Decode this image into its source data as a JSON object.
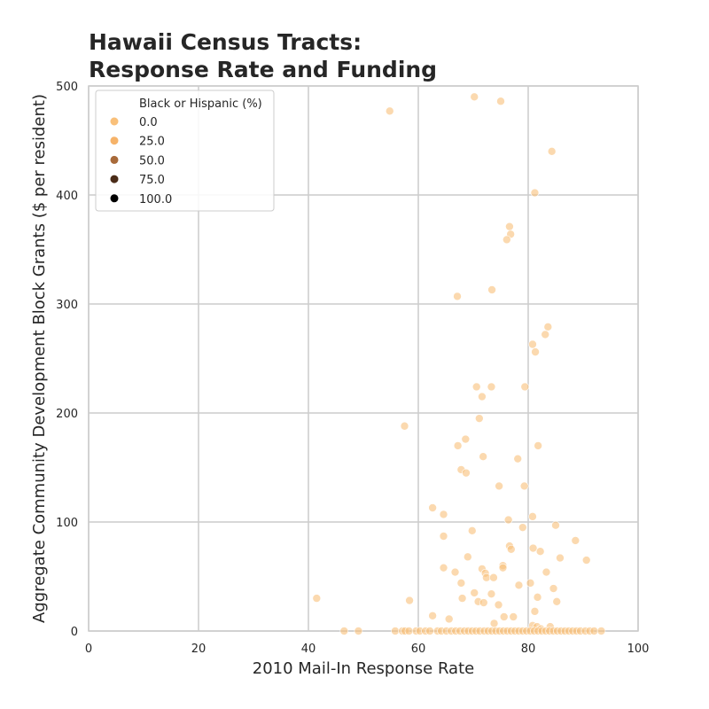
{
  "chart_data": {
    "type": "scatter",
    "title_lines": [
      "Hawaii Census Tracts:",
      "Response Rate and Funding"
    ],
    "xlabel": "2010 Mail-In Response Rate",
    "ylabel": "Aggregate Community Development Block Grants ($ per resident)",
    "xlim": [
      0,
      100
    ],
    "ylim": [
      0,
      500
    ],
    "x_ticks": [
      0,
      20,
      40,
      60,
      80,
      100
    ],
    "y_ticks": [
      0,
      100,
      200,
      300,
      400,
      500
    ],
    "grid": true,
    "legend": {
      "title": "Black or Hispanic (%)",
      "placement": "top-left",
      "entries": [
        {
          "label": "0.0",
          "color": "#f9c07a"
        },
        {
          "label": "25.0",
          "color": "#f6b369"
        },
        {
          "label": "50.0",
          "color": "#a86a3a"
        },
        {
          "label": "75.0",
          "color": "#4a2c18"
        },
        {
          "label": "100.0",
          "color": "#000000"
        }
      ]
    },
    "point_color": "#f9c07a",
    "point_opacity": 0.6,
    "points": [
      [
        54.8,
        477
      ],
      [
        70.2,
        490
      ],
      [
        75.0,
        486
      ],
      [
        84.3,
        440
      ],
      [
        81.2,
        402
      ],
      [
        76.6,
        371
      ],
      [
        76.8,
        364
      ],
      [
        76.1,
        359
      ],
      [
        67.1,
        307
      ],
      [
        73.4,
        313
      ],
      [
        83.6,
        279
      ],
      [
        83.1,
        272
      ],
      [
        80.8,
        263
      ],
      [
        81.3,
        256
      ],
      [
        70.6,
        224
      ],
      [
        73.3,
        224
      ],
      [
        79.4,
        224
      ],
      [
        71.6,
        215
      ],
      [
        71.1,
        195
      ],
      [
        57.5,
        188
      ],
      [
        67.2,
        170
      ],
      [
        68.6,
        176
      ],
      [
        81.8,
        170
      ],
      [
        71.8,
        160
      ],
      [
        78.1,
        158
      ],
      [
        67.8,
        148
      ],
      [
        68.7,
        145
      ],
      [
        74.7,
        133
      ],
      [
        79.3,
        133
      ],
      [
        62.6,
        113
      ],
      [
        64.6,
        107
      ],
      [
        76.4,
        102
      ],
      [
        80.8,
        105
      ],
      [
        85.0,
        97
      ],
      [
        79.0,
        95
      ],
      [
        64.6,
        87
      ],
      [
        69.8,
        92
      ],
      [
        76.6,
        78
      ],
      [
        76.9,
        75
      ],
      [
        80.9,
        76
      ],
      [
        82.2,
        73
      ],
      [
        88.6,
        83
      ],
      [
        85.8,
        67
      ],
      [
        90.6,
        65
      ],
      [
        69.0,
        68
      ],
      [
        75.4,
        60
      ],
      [
        75.4,
        58
      ],
      [
        64.6,
        58
      ],
      [
        71.6,
        57
      ],
      [
        72.2,
        53
      ],
      [
        66.7,
        54
      ],
      [
        72.4,
        49
      ],
      [
        73.7,
        49
      ],
      [
        83.3,
        54
      ],
      [
        84.6,
        39
      ],
      [
        80.4,
        44
      ],
      [
        67.8,
        44
      ],
      [
        78.3,
        42
      ],
      [
        70.2,
        35
      ],
      [
        73.3,
        34
      ],
      [
        81.7,
        31
      ],
      [
        68.0,
        30
      ],
      [
        70.9,
        27
      ],
      [
        71.9,
        26
      ],
      [
        74.6,
        24
      ],
      [
        85.2,
        27
      ],
      [
        41.5,
        30
      ],
      [
        58.4,
        28
      ],
      [
        77.3,
        13
      ],
      [
        62.6,
        14
      ],
      [
        65.6,
        11
      ],
      [
        75.6,
        13
      ],
      [
        81.2,
        18
      ],
      [
        84.0,
        4
      ],
      [
        80.8,
        5
      ],
      [
        81.6,
        4
      ],
      [
        82.3,
        2
      ],
      [
        73.8,
        7
      ],
      [
        46.5,
        0
      ],
      [
        49.1,
        0
      ],
      [
        55.8,
        0
      ],
      [
        57.1,
        0
      ],
      [
        57.6,
        0
      ],
      [
        58.3,
        0
      ],
      [
        59.6,
        0
      ],
      [
        60.3,
        0
      ],
      [
        61.3,
        0
      ],
      [
        62.1,
        0
      ],
      [
        63.5,
        0
      ],
      [
        64.2,
        0
      ],
      [
        65.1,
        0
      ],
      [
        66.0,
        0
      ],
      [
        66.8,
        0
      ],
      [
        67.6,
        0
      ],
      [
        68.4,
        0
      ],
      [
        69.1,
        0
      ],
      [
        69.8,
        0
      ],
      [
        70.5,
        0
      ],
      [
        71.2,
        0
      ],
      [
        72.0,
        0
      ],
      [
        72.7,
        0
      ],
      [
        73.4,
        0
      ],
      [
        74.1,
        0
      ],
      [
        74.8,
        0
      ],
      [
        75.5,
        0
      ],
      [
        76.2,
        0
      ],
      [
        76.9,
        0
      ],
      [
        77.6,
        0
      ],
      [
        78.3,
        0
      ],
      [
        79.0,
        0
      ],
      [
        79.7,
        0
      ],
      [
        80.4,
        0
      ],
      [
        81.1,
        0
      ],
      [
        81.8,
        0
      ],
      [
        82.5,
        0
      ],
      [
        83.2,
        0
      ],
      [
        83.9,
        0
      ],
      [
        84.6,
        0
      ],
      [
        85.3,
        0
      ],
      [
        86.0,
        0
      ],
      [
        86.7,
        0
      ],
      [
        87.4,
        0
      ],
      [
        88.1,
        0
      ],
      [
        88.8,
        0
      ],
      [
        89.5,
        0
      ],
      [
        90.4,
        0
      ],
      [
        91.2,
        0
      ],
      [
        92.0,
        0
      ],
      [
        93.3,
        0
      ]
    ]
  }
}
